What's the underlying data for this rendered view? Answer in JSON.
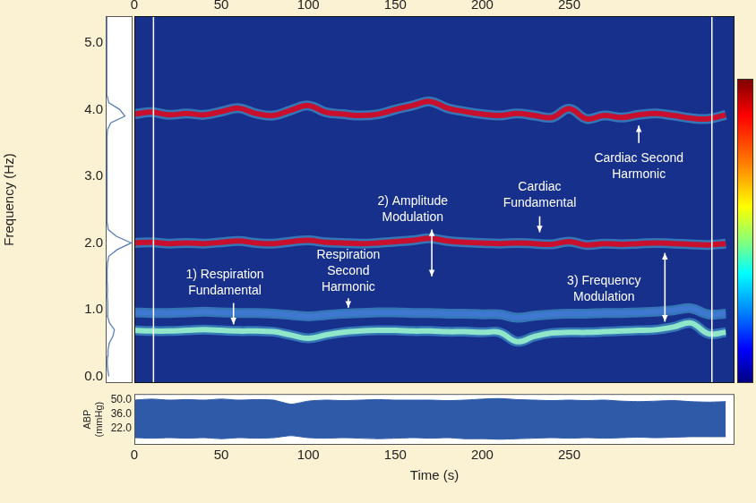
{
  "chart_data": [
    {
      "type": "line",
      "orientation": "horizontal",
      "ylabel": "Frequency (Hz)",
      "y": [
        0,
        0.1,
        0.2,
        0.3,
        0.4,
        0.5,
        0.6,
        0.7,
        0.8,
        0.9,
        1.0,
        1.1,
        1.2,
        1.3,
        1.4,
        1.5,
        1.6,
        1.7,
        1.8,
        1.9,
        2.0,
        2.1,
        2.2,
        2.3,
        2.4,
        2.5,
        2.6,
        2.7,
        2.8,
        2.9,
        3.0,
        3.1,
        3.2,
        3.3,
        3.4,
        3.5,
        3.6,
        3.7,
        3.8,
        3.9,
        4.0,
        4.1,
        4.2,
        4.3,
        4.4,
        4.5,
        4.6,
        4.7,
        4.8,
        4.9,
        5.0,
        5.1,
        5.2,
        5.3,
        5.4
      ],
      "values": [
        0.12,
        0.08,
        0.06,
        0.07,
        0.09,
        0.14,
        0.28,
        0.34,
        0.15,
        0.07,
        0.09,
        0.07,
        0.06,
        0.07,
        0.06,
        0.05,
        0.06,
        0.07,
        0.12,
        0.45,
        1.0,
        0.42,
        0.1,
        0.06,
        0.05,
        0.06,
        0.05,
        0.05,
        0.06,
        0.05,
        0.05,
        0.06,
        0.05,
        0.05,
        0.05,
        0.05,
        0.06,
        0.07,
        0.2,
        0.75,
        0.55,
        0.12,
        0.06,
        0.05,
        0.05,
        0.05,
        0.05,
        0.04,
        0.04,
        0.05,
        0.04,
        0.04,
        0.04,
        0.04,
        0.04
      ],
      "color": "#5b7fb5",
      "xlim": [
        0,
        1.05
      ],
      "ylim": [
        -0.1,
        5.4
      ],
      "yticks": [
        {
          "value": 0,
          "label": "0.0"
        },
        {
          "value": 1,
          "label": "1.0"
        },
        {
          "value": 2,
          "label": "2.0"
        },
        {
          "value": 3,
          "label": "3.0"
        },
        {
          "value": 4,
          "label": "4.0"
        },
        {
          "value": 5,
          "label": "5.0"
        }
      ],
      "tick_labels": "y",
      "grid": false
    },
    {
      "type": "line",
      "x": [
        0,
        10,
        20,
        30,
        40,
        50,
        60,
        70,
        80,
        90,
        100,
        110,
        120,
        130,
        140,
        150,
        160,
        170,
        180,
        190,
        200,
        210,
        220,
        230,
        240,
        250,
        260,
        270,
        280,
        290,
        300,
        310,
        320,
        330,
        340
      ],
      "series": [
        {
          "color": "#3f78d0",
          "values": [
            0.96,
            0.95,
            0.95,
            0.96,
            0.97,
            0.96,
            0.95,
            0.95,
            0.94,
            0.92,
            0.9,
            0.92,
            0.94,
            0.95,
            0.96,
            0.96,
            0.95,
            0.95,
            0.94,
            0.94,
            0.93,
            0.93,
            0.88,
            0.91,
            0.93,
            0.94,
            0.94,
            0.95,
            0.95,
            0.96,
            0.97,
            0.99,
            1.02,
            0.93,
            0.94
          ]
        },
        {
          "color": "#8fe6c8",
          "values": [
            0.69,
            0.68,
            0.68,
            0.69,
            0.7,
            0.69,
            0.68,
            0.68,
            0.67,
            0.62,
            0.57,
            0.62,
            0.66,
            0.68,
            0.69,
            0.69,
            0.68,
            0.68,
            0.67,
            0.67,
            0.66,
            0.66,
            0.52,
            0.6,
            0.65,
            0.66,
            0.66,
            0.67,
            0.68,
            0.69,
            0.7,
            0.74,
            0.8,
            0.64,
            0.66
          ]
        },
        {
          "color": "#c8102e",
          "values": [
            2.0,
            2.01,
            1.99,
            2.0,
            1.99,
            2.01,
            2.03,
            2.0,
            1.99,
            2.02,
            2.04,
            2.01,
            2.0,
            1.99,
            2.0,
            2.02,
            2.04,
            2.07,
            2.03,
            2.01,
            2.0,
            1.99,
            2.0,
            1.99,
            1.98,
            2.02,
            1.97,
            1.99,
            1.98,
            1.99,
            2.0,
            1.99,
            1.98,
            1.97,
            1.99
          ]
        },
        {
          "color": "#c8102e",
          "values": [
            3.93,
            3.96,
            3.92,
            3.94,
            3.92,
            3.97,
            4.02,
            3.94,
            3.91,
            3.99,
            4.06,
            3.96,
            3.93,
            3.91,
            3.93,
            4.0,
            4.06,
            4.12,
            4.02,
            3.97,
            3.93,
            3.91,
            3.94,
            3.91,
            3.88,
            4.01,
            3.86,
            3.91,
            3.88,
            3.92,
            3.94,
            3.91,
            3.87,
            3.86,
            3.92
          ]
        }
      ],
      "xlim": [
        0,
        345
      ],
      "xticks": [
        0,
        50,
        100,
        150,
        200,
        250
      ],
      "ylim": [
        -0.1,
        5.4
      ],
      "vlines": [
        11,
        332
      ],
      "annotations": [
        {
          "text": "1) Respiration Fundamental",
          "x": 52,
          "y": 1.4,
          "arrow": {
            "from": [
              57,
              1.1
            ],
            "to": [
              57,
              0.78
            ],
            "double": false
          }
        },
        {
          "text": "2) Amplitude Modulation",
          "x": 160,
          "y": 2.5,
          "arrow": {
            "from": [
              171,
              2.2
            ],
            "to": [
              171,
              1.5
            ],
            "double": true
          }
        },
        {
          "text": "Respiration Second Harmonic",
          "x": 123,
          "y": 1.57,
          "arrow": {
            "from": [
              123,
              1.17
            ],
            "to": [
              123,
              1.03
            ],
            "double": false
          }
        },
        {
          "text": "Cardiac Fundamental",
          "x": 233,
          "y": 2.72,
          "arrow": {
            "from": [
              233,
              2.4
            ],
            "to": [
              233,
              2.16
            ],
            "double": false
          }
        },
        {
          "text": "Cardiac Second Harmonic",
          "x": 290,
          "y": 3.15,
          "arrow": {
            "from": [
              290,
              3.5
            ],
            "to": [
              290,
              3.76
            ],
            "double": false
          }
        },
        {
          "text": "3) Frequency Modulation",
          "x": 270,
          "y": 1.3,
          "arrow": {
            "from": [
              305,
              1.85
            ],
            "to": [
              305,
              0.82
            ],
            "double": true
          }
        }
      ],
      "tick_labels": "x",
      "grid": false
    },
    {
      "type": "band",
      "ylabel": "ABP (mmHg)",
      "xlabel": "Time (s)",
      "x": [
        0,
        10,
        20,
        30,
        40,
        50,
        60,
        70,
        80,
        90,
        100,
        110,
        120,
        130,
        140,
        150,
        160,
        170,
        180,
        190,
        200,
        210,
        220,
        230,
        240,
        250,
        260,
        270,
        280,
        290,
        300,
        310,
        320,
        330,
        340
      ],
      "series": [
        {
          "color": "#2e5aa8",
          "values": [
            50,
            51,
            50,
            50.5,
            50,
            51,
            50,
            50.5,
            50,
            46,
            49,
            50,
            49.5,
            50,
            50.5,
            50,
            50,
            50,
            49.5,
            50,
            51,
            51.5,
            50.5,
            50,
            49.5,
            50,
            49.5,
            50,
            49,
            48.5,
            49,
            49.5,
            48.5,
            48,
            48.5
          ]
        },
        {
          "color": "#2e5aa8",
          "values": [
            13,
            12.5,
            13,
            12.5,
            13,
            12,
            13,
            12.5,
            13,
            15,
            13,
            12.5,
            13,
            12.5,
            12,
            12.5,
            13,
            12.5,
            13,
            12,
            12,
            11.5,
            12,
            12.5,
            13,
            12.5,
            13,
            12.5,
            13,
            13.5,
            13,
            13.5,
            14,
            14,
            14
          ]
        }
      ],
      "xlim": [
        0,
        345
      ],
      "xticks": [
        0,
        50,
        100,
        150,
        200,
        250
      ],
      "ylim": [
        6,
        56
      ],
      "yticks": [
        {
          "value": 22,
          "label": "22.0"
        },
        {
          "value": 36,
          "label": "36.0"
        },
        {
          "value": 50,
          "label": "50.0"
        }
      ],
      "grid": false
    }
  ]
}
